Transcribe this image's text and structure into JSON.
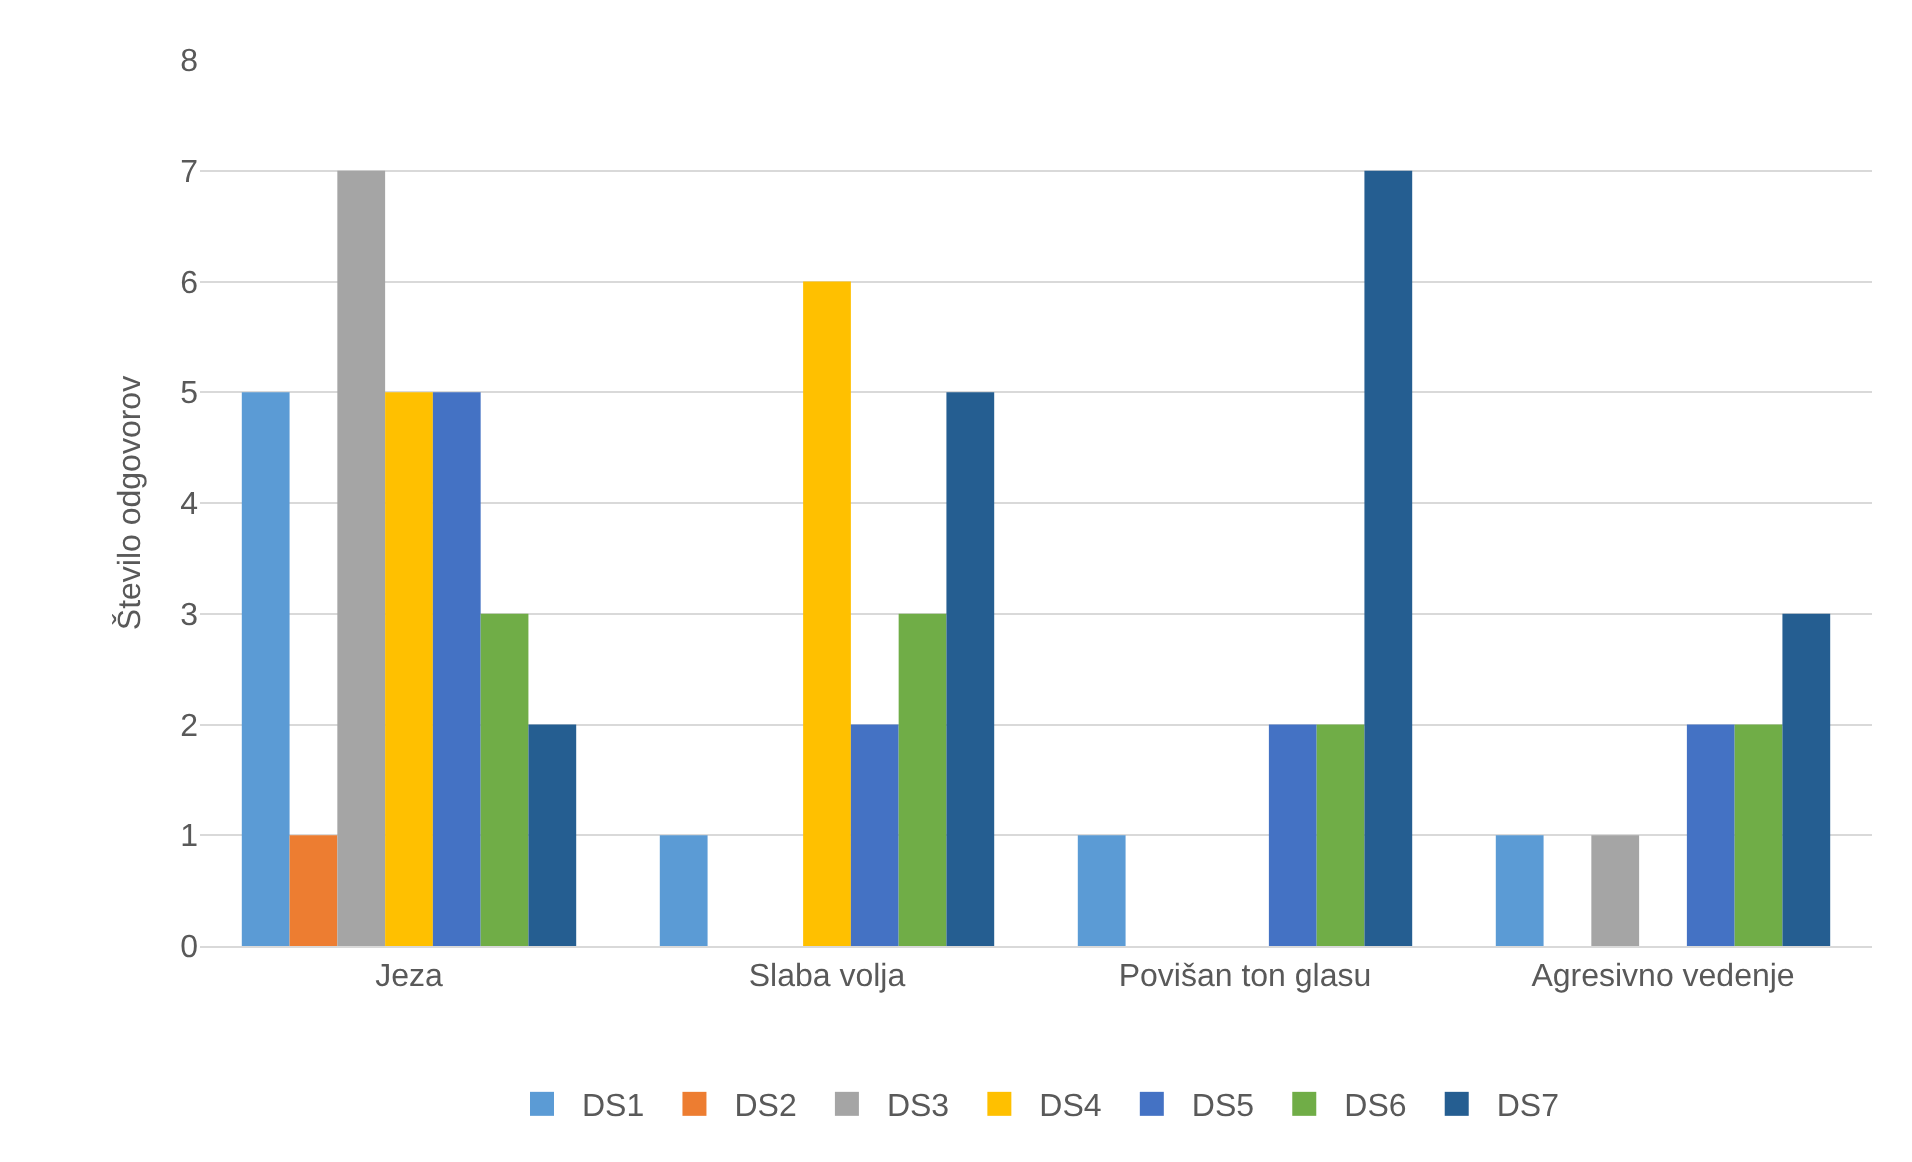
{
  "chart_data": {
    "type": "bar",
    "ylabel": "Število odgovorov",
    "categories": [
      "Jeza",
      "Slaba volja",
      "Povišan ton glasu",
      "Agresivno vedenje"
    ],
    "series": [
      {
        "name": "DS1",
        "color": "#5b9bd5",
        "values": [
          5,
          1,
          1,
          1
        ]
      },
      {
        "name": "DS2",
        "color": "#ed7d31",
        "values": [
          1,
          0,
          0,
          0
        ]
      },
      {
        "name": "DS3",
        "color": "#a5a5a5",
        "values": [
          7,
          0,
          0,
          1
        ]
      },
      {
        "name": "DS4",
        "color": "#ffc000",
        "values": [
          5,
          6,
          0,
          0
        ]
      },
      {
        "name": "DS5",
        "color": "#4472c4",
        "values": [
          5,
          2,
          2,
          2
        ]
      },
      {
        "name": "DS6",
        "color": "#70ad47",
        "values": [
          3,
          3,
          2,
          2
        ]
      },
      {
        "name": "DS7",
        "color": "#255e91",
        "values": [
          2,
          5,
          7,
          3
        ]
      }
    ],
    "ylim": [
      0,
      8
    ],
    "yticks": [
      0,
      1,
      2,
      3,
      4,
      5,
      6,
      7,
      8
    ],
    "grid": "y",
    "legend": "bottom"
  }
}
